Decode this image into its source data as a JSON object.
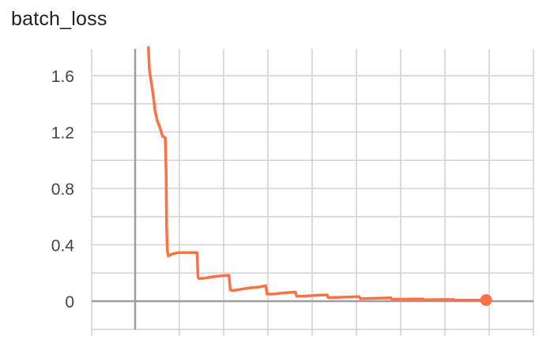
{
  "chart_data": {
    "type": "line",
    "title": "batch_loss",
    "xlabel": "",
    "ylabel": "",
    "ylim": [
      -0.16,
      1.8
    ],
    "y_ticks": [
      0,
      0.4,
      0.8,
      1.2,
      1.6
    ],
    "y_tick_labels": [
      "0",
      "0.4",
      "0.8",
      "1.2",
      "1.6"
    ],
    "grid": true,
    "legend": "none",
    "series": [
      {
        "color": "#ff7043",
        "x": [
          0.3,
          0.32,
          0.35,
          0.4,
          0.45,
          0.5,
          0.55,
          0.62,
          0.68,
          0.7,
          0.71,
          0.72,
          0.73,
          0.75,
          0.8,
          0.9,
          1.0,
          1.1,
          1.2,
          1.4,
          1.42,
          1.45,
          1.6,
          1.8,
          2.12,
          2.15,
          2.2,
          2.4,
          2.6,
          2.8,
          2.95,
          2.98,
          3.1,
          3.4,
          3.62,
          3.65,
          3.8,
          4.1,
          4.34,
          4.36,
          4.6,
          5.06,
          5.09,
          5.4,
          5.78,
          5.8,
          6.1,
          6.5,
          6.52,
          7.0,
          7.2,
          7.22,
          7.6,
          7.93
        ],
        "y": [
          1.8,
          1.65,
          1.58,
          1.48,
          1.35,
          1.28,
          1.24,
          1.17,
          1.16,
          0.92,
          0.55,
          0.42,
          0.35,
          0.32,
          0.33,
          0.34,
          0.345,
          0.345,
          0.345,
          0.345,
          0.17,
          0.16,
          0.165,
          0.175,
          0.185,
          0.08,
          0.075,
          0.085,
          0.095,
          0.1,
          0.11,
          0.05,
          0.05,
          0.06,
          0.065,
          0.035,
          0.035,
          0.042,
          0.045,
          0.025,
          0.027,
          0.032,
          0.018,
          0.02,
          0.024,
          0.013,
          0.014,
          0.016,
          0.01,
          0.012,
          0.011,
          0.007,
          0.008,
          0.008
        ]
      }
    ],
    "xlim": [
      -0.98,
      9.0
    ],
    "x_ticks": [
      -0.98,
      0,
      1,
      2,
      3,
      4,
      5,
      6,
      7,
      8,
      9
    ],
    "end_marker": {
      "x": 7.93,
      "y": 0.008
    }
  },
  "colors": {
    "line": "#ff7043",
    "grid": "#d2d2d2",
    "axis": "#9e9e9e",
    "text": "#444444"
  }
}
